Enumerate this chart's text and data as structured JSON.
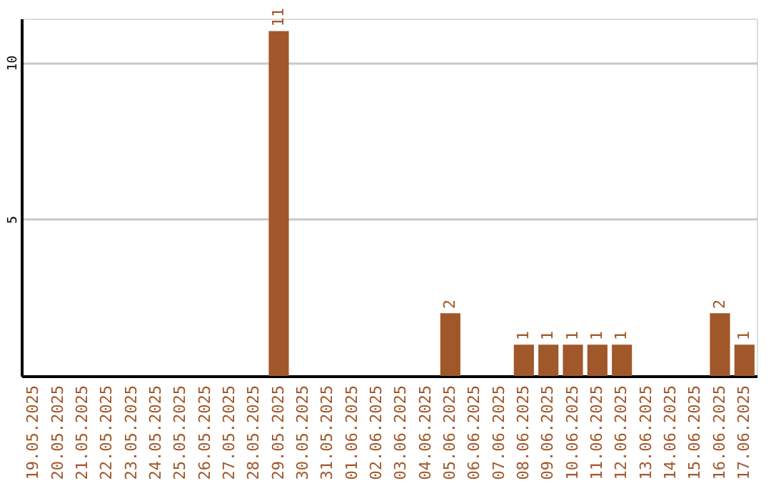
{
  "chart_data": {
    "type": "bar",
    "categories": [
      "19.05.2025",
      "20.05.2025",
      "21.05.2025",
      "22.05.2025",
      "23.05.2025",
      "24.05.2025",
      "25.05.2025",
      "26.05.2025",
      "27.05.2025",
      "28.05.2025",
      "29.05.2025",
      "30.05.2025",
      "31.05.2025",
      "01.06.2025",
      "02.06.2025",
      "03.06.2025",
      "04.06.2025",
      "05.06.2025",
      "06.06.2025",
      "07.06.2025",
      "08.06.2025",
      "09.06.2025",
      "10.06.2025",
      "11.06.2025",
      "12.06.2025",
      "13.06.2025",
      "14.06.2025",
      "15.06.2025",
      "16.06.2025",
      "17.06.2025"
    ],
    "values": [
      0,
      0,
      0,
      0,
      0,
      0,
      0,
      0,
      0,
      0,
      11,
      0,
      0,
      0,
      0,
      0,
      0,
      2,
      0,
      0,
      1,
      1,
      1,
      1,
      1,
      0,
      0,
      0,
      2,
      1
    ],
    "value_labels": [
      null,
      null,
      null,
      null,
      null,
      null,
      null,
      null,
      null,
      null,
      "11",
      null,
      null,
      null,
      null,
      null,
      null,
      "2",
      null,
      null,
      "1",
      "1",
      "1",
      "1",
      "1",
      null,
      null,
      null,
      "2",
      "1"
    ],
    "color": "#a0572a",
    "ylim": [
      0,
      11.4
    ],
    "yticks": [
      5,
      10
    ],
    "grid": "y"
  }
}
